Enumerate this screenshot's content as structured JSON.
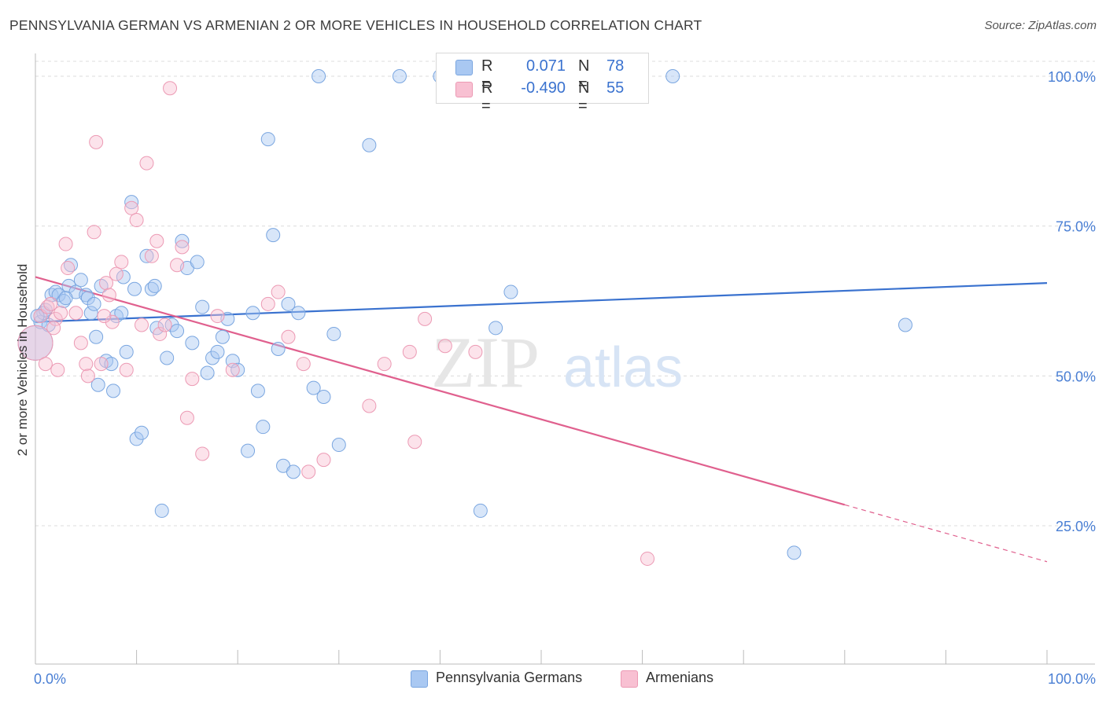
{
  "header": {
    "title": "PENNSYLVANIA GERMAN VS ARMENIAN 2 OR MORE VEHICLES IN HOUSEHOLD CORRELATION CHART",
    "source": "Source: ZipAtlas.com"
  },
  "watermark": {
    "part1": "ZIP",
    "part2": "atlas"
  },
  "legend": {
    "rows": [
      {
        "r_label": "R =",
        "r_value": "0.071",
        "n_label": "N =",
        "n_value": "78",
        "color": "#a9c8f2",
        "border": "#7aa6e0"
      },
      {
        "r_label": "R =",
        "r_value": "-0.490",
        "n_label": "N =",
        "n_value": "55",
        "color": "#f8c0d2",
        "border": "#ec9ab4"
      }
    ]
  },
  "bottom_legend": {
    "items": [
      {
        "label": "Pennsylvania Germans",
        "color": "#a9c8f2",
        "border": "#7aa6e0"
      },
      {
        "label": "Armenians",
        "color": "#f8c0d2",
        "border": "#ec9ab4"
      }
    ]
  },
  "chart_data": {
    "type": "scatter",
    "title": "PENNSYLVANIA GERMAN VS ARMENIAN 2 OR MORE VEHICLES IN HOUSEHOLD CORRELATION CHART",
    "xlabel": "",
    "ylabel": "2 or more Vehicles in Household",
    "xlim": [
      0,
      100
    ],
    "ylim": [
      0,
      102
    ],
    "x_tick_labels": {
      "left": "0.0%",
      "right": "100.0%"
    },
    "y_tick_labels": [
      {
        "value": 100,
        "label": "100.0%"
      },
      {
        "value": 75,
        "label": "75.0%"
      },
      {
        "value": 50,
        "label": "50.0%"
      },
      {
        "value": 25,
        "label": "25.0%"
      }
    ],
    "colors": {
      "blue": "#3a72cf",
      "pink": "#e0608e"
    },
    "series": [
      {
        "name": "Pennsylvania Germans",
        "points": [
          [
            0.0,
            55.5
          ],
          [
            0.5,
            59
          ],
          [
            0.8,
            60.5
          ],
          [
            1.0,
            61
          ],
          [
            1.6,
            63.5
          ],
          [
            2.0,
            64
          ],
          [
            2.3,
            63.5
          ],
          [
            2.8,
            62.5
          ],
          [
            3.3,
            65
          ],
          [
            3.5,
            68.5
          ],
          [
            4.0,
            64
          ],
          [
            4.5,
            66
          ],
          [
            5.0,
            63.5
          ],
          [
            5.2,
            63
          ],
          [
            5.5,
            60.5
          ],
          [
            6.0,
            56.5
          ],
          [
            6.2,
            48.5
          ],
          [
            6.5,
            65
          ],
          [
            7.0,
            52.5
          ],
          [
            7.5,
            52
          ],
          [
            7.7,
            47.5
          ],
          [
            8.0,
            60
          ],
          [
            8.5,
            60.5
          ],
          [
            8.7,
            66.5
          ],
          [
            9.0,
            54
          ],
          [
            9.5,
            79
          ],
          [
            10.0,
            39.5
          ],
          [
            10.5,
            40.5
          ],
          [
            11.0,
            70
          ],
          [
            11.5,
            64.5
          ],
          [
            11.8,
            65
          ],
          [
            12.0,
            58
          ],
          [
            12.5,
            27.5
          ],
          [
            13.0,
            53
          ],
          [
            13.5,
            58.5
          ],
          [
            14.0,
            57.5
          ],
          [
            14.5,
            72.5
          ],
          [
            15.0,
            68
          ],
          [
            15.5,
            55.5
          ],
          [
            16.0,
            69
          ],
          [
            16.5,
            61.5
          ],
          [
            17.0,
            50.5
          ],
          [
            17.5,
            53
          ],
          [
            18.0,
            54
          ],
          [
            18.5,
            56.5
          ],
          [
            19.0,
            59.5
          ],
          [
            19.5,
            52.5
          ],
          [
            20.0,
            51
          ],
          [
            28.0,
            100
          ],
          [
            21.0,
            37.5
          ],
          [
            21.5,
            60.5
          ],
          [
            22.0,
            47.5
          ],
          [
            22.5,
            41.5
          ],
          [
            23.0,
            89.5
          ],
          [
            23.5,
            73.5
          ],
          [
            24.0,
            54.5
          ],
          [
            24.5,
            35
          ],
          [
            25.0,
            62
          ],
          [
            25.5,
            34
          ],
          [
            26.0,
            60.5
          ],
          [
            27.5,
            48
          ],
          [
            28.5,
            46.5
          ],
          [
            29.5,
            57
          ],
          [
            30.0,
            38.5
          ],
          [
            33.0,
            88.5
          ],
          [
            36.0,
            100
          ],
          [
            40.0,
            100
          ],
          [
            44.0,
            27.5
          ],
          [
            45.5,
            58
          ],
          [
            47.0,
            64
          ],
          [
            63.0,
            100
          ],
          [
            75.0,
            20.5
          ],
          [
            86.0,
            58.5
          ],
          [
            0.2,
            60
          ],
          [
            1.3,
            58.5
          ],
          [
            3.0,
            63
          ],
          [
            5.8,
            62
          ],
          [
            9.8,
            64.5
          ]
        ],
        "trend": {
          "x": [
            0,
            100
          ],
          "y": [
            59.0,
            65.5
          ]
        }
      },
      {
        "name": "Armenians",
        "points": [
          [
            0.0,
            55.5
          ],
          [
            0.5,
            60
          ],
          [
            1.0,
            52
          ],
          [
            1.2,
            61.5
          ],
          [
            1.5,
            62
          ],
          [
            2.0,
            59.5
          ],
          [
            2.2,
            51
          ],
          [
            2.5,
            60.5
          ],
          [
            3.0,
            72
          ],
          [
            3.2,
            68
          ],
          [
            4.0,
            60.5
          ],
          [
            4.5,
            55.5
          ],
          [
            5.0,
            52
          ],
          [
            5.2,
            50
          ],
          [
            5.8,
            74
          ],
          [
            6.0,
            89
          ],
          [
            6.5,
            52
          ],
          [
            7.0,
            65.5
          ],
          [
            7.3,
            63.5
          ],
          [
            7.6,
            59
          ],
          [
            8.0,
            67
          ],
          [
            8.5,
            69
          ],
          [
            9.0,
            51
          ],
          [
            9.5,
            78
          ],
          [
            10.0,
            76
          ],
          [
            10.5,
            58.5
          ],
          [
            11.0,
            85.5
          ],
          [
            11.5,
            70
          ],
          [
            12.0,
            72.5
          ],
          [
            12.3,
            57
          ],
          [
            12.8,
            58.5
          ],
          [
            13.3,
            98
          ],
          [
            14.0,
            68.5
          ],
          [
            14.5,
            71.5
          ],
          [
            15.0,
            43
          ],
          [
            15.5,
            49.5
          ],
          [
            16.5,
            37
          ],
          [
            18.0,
            60
          ],
          [
            23.0,
            62
          ],
          [
            24.0,
            64
          ],
          [
            25.0,
            56.5
          ],
          [
            26.5,
            52
          ],
          [
            27.0,
            34
          ],
          [
            28.5,
            36
          ],
          [
            33.0,
            45
          ],
          [
            34.5,
            52
          ],
          [
            37.0,
            54
          ],
          [
            37.5,
            39
          ],
          [
            38.5,
            59.5
          ],
          [
            40.5,
            55
          ],
          [
            43.5,
            54
          ],
          [
            60.5,
            19.5
          ],
          [
            1.8,
            58
          ],
          [
            6.8,
            60
          ],
          [
            19.5,
            51
          ]
        ],
        "trend": {
          "x": [
            0,
            80
          ],
          "y": [
            66.5,
            28.5
          ]
        },
        "trend_dashed": {
          "x": [
            80,
            100
          ],
          "y": [
            28.5,
            19.0
          ]
        }
      }
    ]
  }
}
